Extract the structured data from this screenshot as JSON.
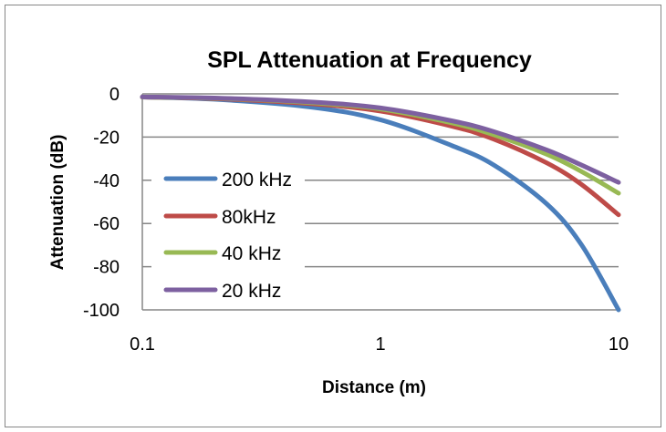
{
  "chart_data": {
    "type": "line",
    "title": "SPL Attenuation at Frequency",
    "xlabel": "Distance (m)",
    "ylabel": "Attenuation (dB)",
    "xscale": "log",
    "xlim": [
      0.1,
      10
    ],
    "ylim": [
      -100,
      0
    ],
    "xticks": [
      "0.1",
      "1",
      "10"
    ],
    "yticks": [
      "0",
      "-20",
      "-40",
      "-60",
      "-80",
      "-100"
    ],
    "grid": "horizontal",
    "legend": "left",
    "x": [
      0.1,
      0.2,
      0.5,
      1,
      2,
      3,
      5,
      7,
      10
    ],
    "series": [
      {
        "name": "200 kHz",
        "color": "#4a7ebb",
        "values": [
          -1.5,
          -2.5,
          -6,
          -12,
          -24,
          -33,
          -51,
          -70,
          -100
        ]
      },
      {
        "name": "80kHz",
        "color": "#be4b48",
        "values": [
          -1.5,
          -2.2,
          -4.5,
          -8,
          -15,
          -21,
          -32,
          -42,
          -56
        ]
      },
      {
        "name": "40 kHz",
        "color": "#98b954",
        "values": [
          -1.5,
          -2,
          -4,
          -7,
          -13.5,
          -19,
          -28,
          -36,
          -46
        ]
      },
      {
        "name": "20 kHz",
        "color": "#7d60a0",
        "values": [
          -1.4,
          -1.9,
          -3.7,
          -6.5,
          -12.5,
          -17.5,
          -26,
          -33,
          -41
        ]
      }
    ]
  }
}
